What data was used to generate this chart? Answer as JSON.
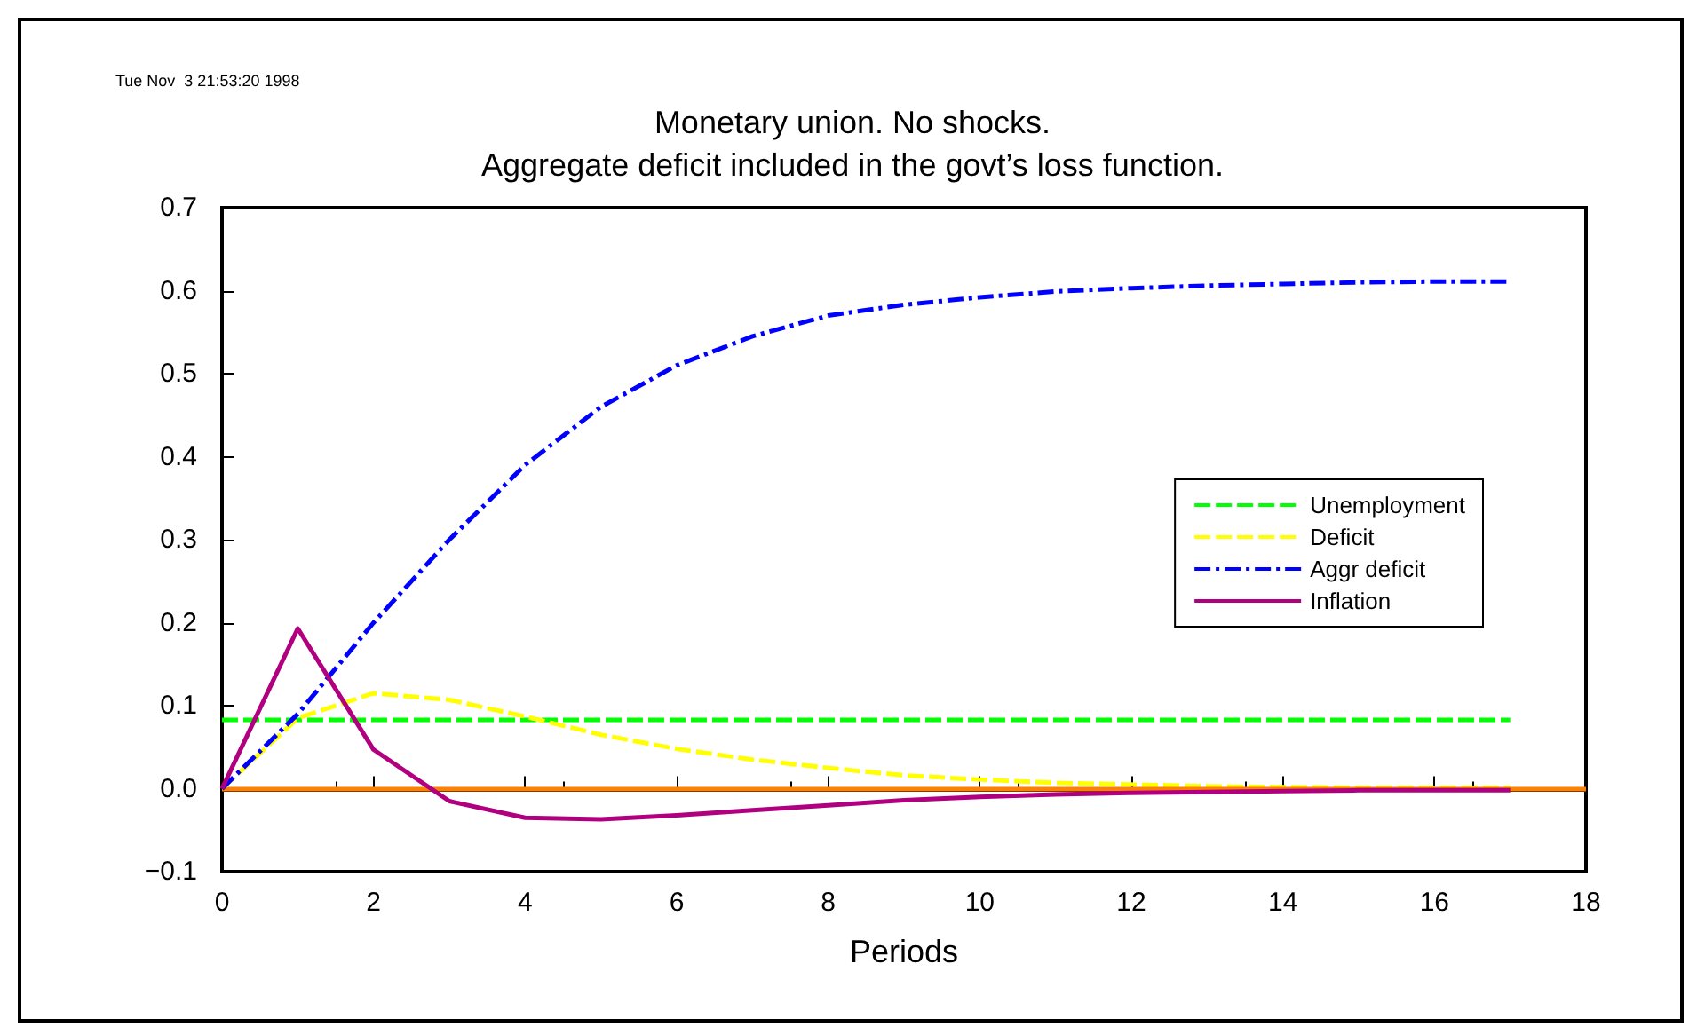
{
  "chart_data": {
    "type": "line",
    "title": "Monetary union. No shocks.",
    "subtitle": "Aggregate deficit included in the govt’s loss function.",
    "xlabel": "Periods",
    "annotations": [
      "Tue Nov  3 21:53:20 1998"
    ],
    "x": [
      0,
      1,
      2,
      3,
      4,
      5,
      6,
      7,
      8,
      9,
      10,
      11,
      12,
      13,
      14,
      15,
      16,
      17
    ],
    "series": [
      {
        "name": "Unemployment",
        "color": "#00ff00",
        "line_style": "dashed",
        "values": [
          0.083,
          0.083,
          0.083,
          0.083,
          0.083,
          0.083,
          0.083,
          0.083,
          0.083,
          0.083,
          0.083,
          0.083,
          0.083,
          0.083,
          0.083,
          0.083,
          0.083,
          0.083
        ]
      },
      {
        "name": "Deficit",
        "color": "#ffff00",
        "line_style": "dashed",
        "values": [
          0,
          0.085,
          0.115,
          0.107,
          0.087,
          0.065,
          0.048,
          0.035,
          0.025,
          0.016,
          0.011,
          0.007,
          0.005,
          0.003,
          0.002,
          0.001,
          0.001,
          0.001
        ]
      },
      {
        "name": "Aggr deficit",
        "color": "#0000ff",
        "line_style": "dashdot",
        "values": [
          0,
          0.09,
          0.2,
          0.3,
          0.39,
          0.46,
          0.51,
          0.545,
          0.57,
          0.583,
          0.592,
          0.599,
          0.603,
          0.606,
          0.608,
          0.61,
          0.611,
          0.611
        ]
      },
      {
        "name": "Inflation",
        "color": "#b00080",
        "line_style": "solid",
        "values": [
          0,
          0.193,
          0.047,
          -0.015,
          -0.035,
          -0.037,
          -0.032,
          -0.026,
          -0.02,
          -0.014,
          -0.01,
          -0.007,
          -0.005,
          -0.004,
          -0.003,
          -0.002,
          -0.002,
          -0.002
        ]
      }
    ],
    "ref_lines": [
      {
        "axis": "y",
        "value": 0,
        "color": "#ff8000",
        "line_style": "solid"
      }
    ],
    "xlim": [
      0,
      18
    ],
    "xticks": [
      0,
      2,
      4,
      6,
      8,
      10,
      12,
      14,
      16,
      18
    ],
    "ylim": [
      -0.1,
      0.7
    ],
    "yticks": [
      {
        "value": -0.1,
        "label": "−0.1"
      },
      {
        "value": 0,
        "label": "0.0"
      },
      0.1,
      0.2,
      0.3,
      0.4,
      0.5,
      0.6,
      0.7
    ],
    "grid": false,
    "legend": "right",
    "marker": "none"
  }
}
